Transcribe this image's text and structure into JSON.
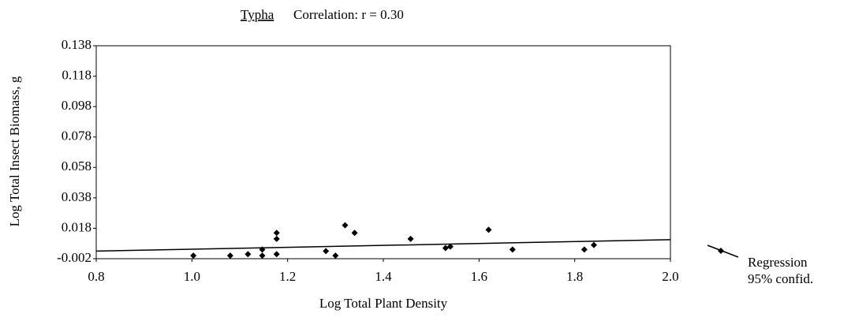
{
  "chart_data": {
    "type": "scatter",
    "title": "Typha",
    "subtitle": "Correlation: r = 0.30",
    "x_label": "Log Total Plant Density",
    "y_label": "Log Total Insect Biomass, g",
    "xlim": [
      0.8,
      2.0
    ],
    "xticks": [
      0.8,
      {
        "value": 1,
        "label": "1.0"
      },
      1.2,
      1.4,
      1.6,
      1.8,
      {
        "value": 2,
        "label": "2.0"
      }
    ],
    "ylim": [
      -0.002,
      0.138
    ],
    "yticks": [
      -0.002,
      0.018,
      0.038,
      0.058,
      0.078,
      0.098,
      0.118,
      0.138
    ],
    "color": "#000000",
    "x": [
      1.003,
      1.08,
      1.117,
      1.147,
      1.147,
      1.177,
      1.177,
      1.177,
      1.28,
      1.3,
      1.32,
      1.34,
      1.457,
      1.53,
      1.54,
      1.62,
      1.67,
      1.82,
      1.84
    ],
    "y": [
      0.0,
      0.0,
      0.001,
      0.004,
      0.0,
      0.015,
      0.011,
      0.001,
      0.003,
      0.0,
      0.02,
      0.015,
      0.011,
      0.005,
      0.006,
      0.017,
      0.004,
      0.004,
      0.007
    ],
    "regression": {
      "name": "Regression",
      "x": [
        0.8,
        2.0
      ],
      "y": [
        0.003,
        0.0105
      ]
    },
    "confidence_label": "95% confid."
  }
}
